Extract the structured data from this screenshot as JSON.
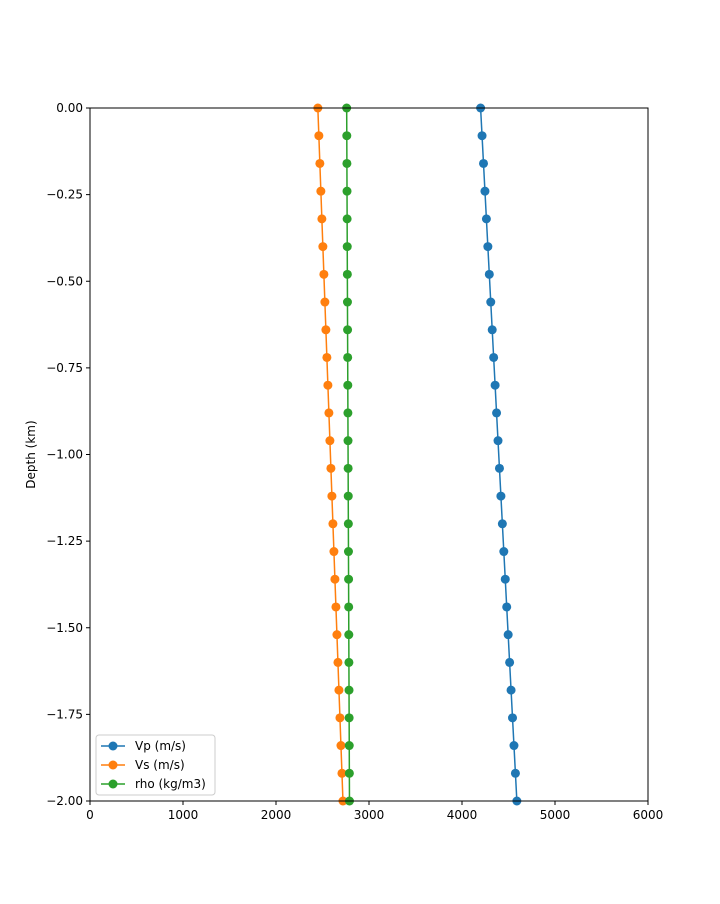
{
  "chart_data": {
    "type": "line",
    "title": "",
    "xlabel": "",
    "ylabel": "Depth (km)",
    "xlim": [
      0,
      6000
    ],
    "ylim": [
      -2.0,
      0.0
    ],
    "xticks": [
      0,
      1000,
      2000,
      3000,
      4000,
      5000,
      6000
    ],
    "xtick_labels": [
      "0",
      "1000",
      "2000",
      "3000",
      "4000",
      "5000",
      "6000"
    ],
    "yticks": [
      0,
      -0.25,
      -0.5,
      -0.75,
      -1.0,
      -1.25,
      -1.5,
      -1.75,
      -2.0
    ],
    "ytick_labels": [
      "0.00",
      "−0.25",
      "−0.50",
      "−0.75",
      "−1.00",
      "−1.25",
      "−1.50",
      "−1.75",
      "−2.00"
    ],
    "grid": false,
    "legend_position": "lower-left",
    "depth_start": 0.0,
    "depth_step": -0.08,
    "num_points": 26,
    "series": [
      {
        "name": "Vp (m/s)",
        "color": "#1f77b4",
        "start": 4200,
        "end": 4590
      },
      {
        "name": "Vs (m/s)",
        "color": "#ff7f0e",
        "start": 2450,
        "end": 2720
      },
      {
        "name": "rho (kg/m3)",
        "color": "#2ca02c",
        "start": 2760,
        "end": 2790
      }
    ]
  }
}
